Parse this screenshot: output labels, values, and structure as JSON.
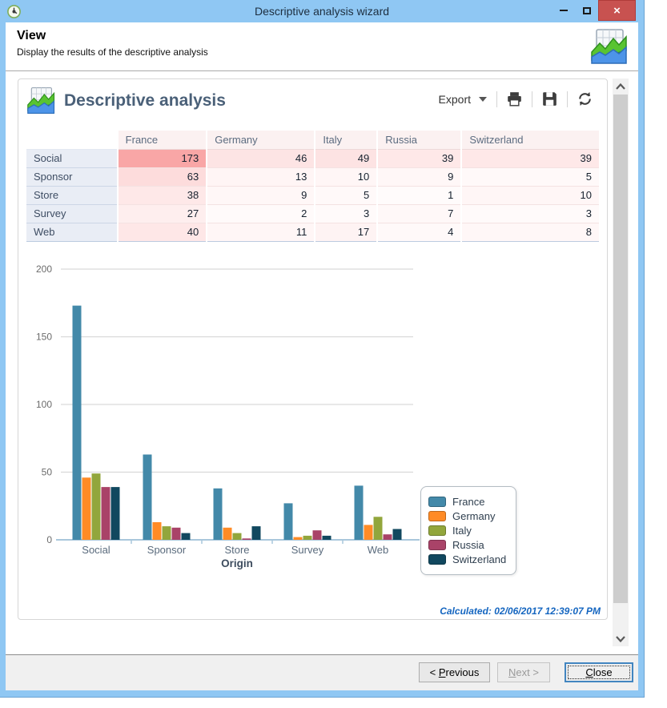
{
  "window": {
    "title": "Descriptive analysis wizard",
    "close_glyph": "×",
    "accent_color": "#8fc7f3",
    "close_color": "#c85250"
  },
  "header": {
    "title": "View",
    "subtitle": "Display the results of the descriptive analysis"
  },
  "panel": {
    "title": "Descriptive analysis",
    "toolbar": {
      "export_label": "Export",
      "icons": [
        "caret-down",
        "printer",
        "floppy-save",
        "refresh"
      ]
    },
    "calculated": "Calculated: 02/06/2017 12:39:07 PM"
  },
  "table": {
    "columns": [
      "France",
      "Germany",
      "Italy",
      "Russia",
      "Switzerland"
    ],
    "col_widths": [
      "15.9%",
      "15.6%",
      "18.9%",
      "10.9%",
      "14.7%",
      "24.0%"
    ],
    "rows": [
      {
        "label": "Social",
        "values": [
          173,
          46,
          49,
          39,
          39
        ]
      },
      {
        "label": "Sponsor",
        "values": [
          63,
          13,
          10,
          9,
          5
        ]
      },
      {
        "label": "Store",
        "values": [
          38,
          9,
          5,
          1,
          10
        ]
      },
      {
        "label": "Survey",
        "values": [
          27,
          2,
          3,
          7,
          3
        ]
      },
      {
        "label": "Web",
        "values": [
          40,
          11,
          17,
          4,
          8
        ]
      }
    ],
    "heat_min_color": "#fffbfb",
    "heat_max_color": "#f9a6a6"
  },
  "chart_data": {
    "type": "bar",
    "categories": [
      "Social",
      "Sponsor",
      "Store",
      "Survey",
      "Web"
    ],
    "series": [
      {
        "name": "France",
        "color": "#4389a9",
        "values": [
          173,
          63,
          38,
          27,
          40
        ]
      },
      {
        "name": "Germany",
        "color": "#ff8b26",
        "values": [
          46,
          13,
          9,
          2,
          11
        ]
      },
      {
        "name": "Italy",
        "color": "#92a63c",
        "values": [
          49,
          10,
          5,
          3,
          17
        ]
      },
      {
        "name": "Russia",
        "color": "#a94368",
        "values": [
          39,
          9,
          1,
          7,
          4
        ]
      },
      {
        "name": "Switzerland",
        "color": "#11485f",
        "values": [
          39,
          5,
          10,
          3,
          8
        ]
      }
    ],
    "title": "",
    "xlabel": "Origin",
    "ylabel": "",
    "ylim": [
      0,
      200
    ],
    "yticks": [
      0,
      50,
      100,
      150,
      200
    ],
    "grid": true,
    "legend_position": "right"
  },
  "footer": {
    "previous": {
      "prefix": "< ",
      "accesskey": "P",
      "suffix": "revious"
    },
    "next": {
      "prefix": "",
      "accesskey": "N",
      "suffix": "ext >"
    },
    "close": {
      "prefix": "",
      "accesskey": "C",
      "suffix": "lose"
    }
  }
}
